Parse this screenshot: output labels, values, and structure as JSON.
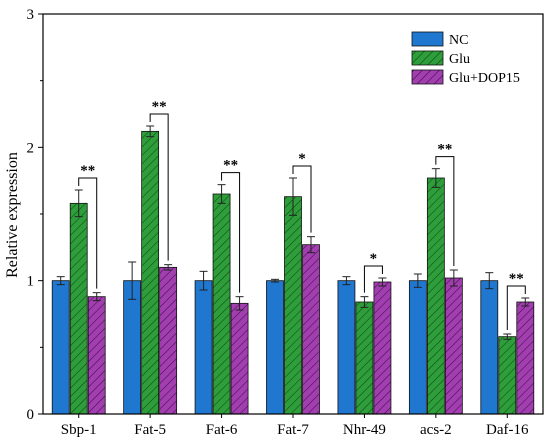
{
  "chart_data": {
    "type": "bar",
    "ylabel": "Relative expression",
    "ylim": [
      0,
      3
    ],
    "y_ticks": [
      "0",
      "1",
      "2",
      "3"
    ],
    "grid": false,
    "legend_position": "top-right",
    "categories": [
      "Sbp-1",
      "Fat-5",
      "Fat-6",
      "Fat-7",
      "Nhr-49",
      "acs-2",
      "Daf-16"
    ],
    "series": [
      {
        "name": "NC",
        "color": "#1f77d0",
        "pattern": "solid",
        "values": [
          1.0,
          1.0,
          1.0,
          1.0,
          1.0,
          1.0,
          1.0
        ],
        "errors": [
          0.03,
          0.14,
          0.07,
          0.01,
          0.03,
          0.05,
          0.06
        ]
      },
      {
        "name": "Glu",
        "color": "#2e9e3a",
        "pattern": "hatch",
        "values": [
          1.58,
          2.12,
          1.65,
          1.63,
          0.84,
          1.77,
          0.58
        ],
        "errors": [
          0.1,
          0.04,
          0.07,
          0.14,
          0.04,
          0.07,
          0.02
        ]
      },
      {
        "name": "Glu+DOP15",
        "color": "#a23eb0",
        "pattern": "hatch",
        "values": [
          0.88,
          1.1,
          0.83,
          1.27,
          0.99,
          1.02,
          0.84
        ],
        "errors": [
          0.03,
          0.02,
          0.05,
          0.06,
          0.03,
          0.06,
          0.03
        ]
      }
    ],
    "significance": [
      {
        "category": "Sbp-1",
        "label": "**"
      },
      {
        "category": "Fat-5",
        "label": "**"
      },
      {
        "category": "Fat-6",
        "label": "**"
      },
      {
        "category": "Fat-7",
        "label": "*"
      },
      {
        "category": "Nhr-49",
        "label": "*"
      },
      {
        "category": "acs-2",
        "label": "**"
      },
      {
        "category": "Daf-16",
        "label": "**"
      }
    ]
  }
}
